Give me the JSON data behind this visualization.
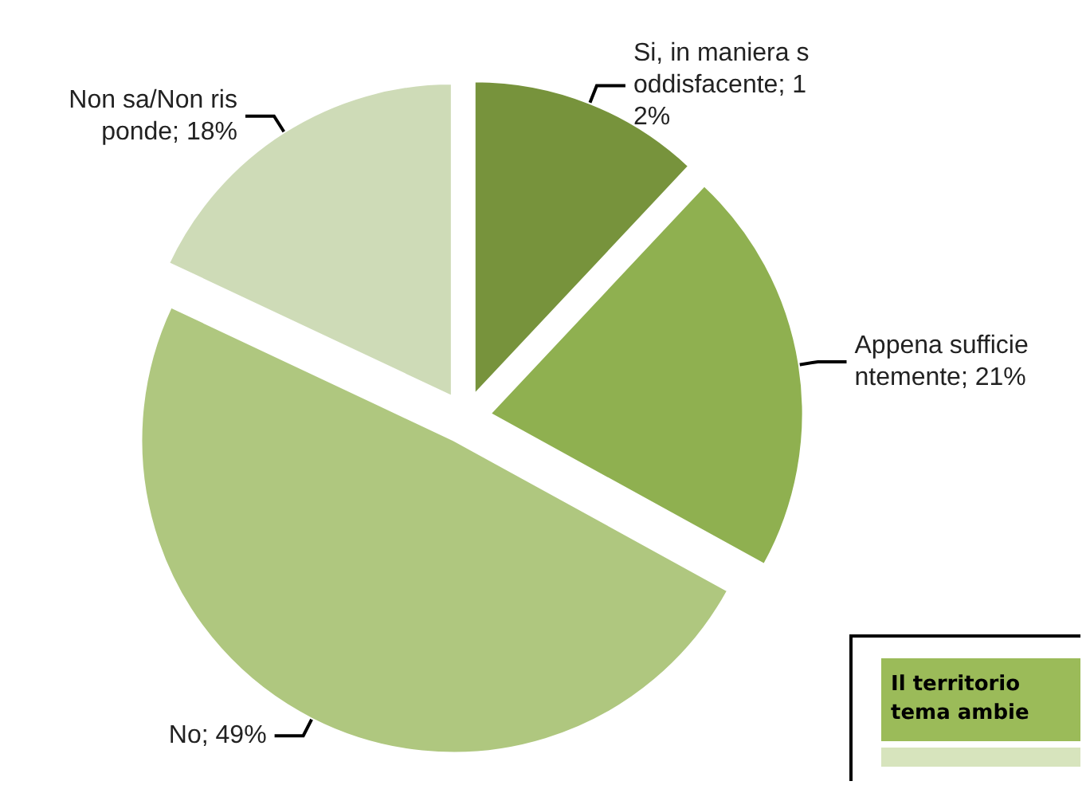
{
  "chart_data": {
    "type": "pie",
    "categories": [
      "Si, in maniera soddisfacente",
      "Appena sufficientemente",
      "No",
      "Non sa/Non risponde"
    ],
    "values": [
      12,
      21,
      49,
      18
    ],
    "value_labels": [
      "12%",
      "21%",
      "49%",
      "18%"
    ],
    "colors": [
      "#77933c",
      "#8fb050",
      "#afc77f",
      "#cedbb7"
    ],
    "annotations": [
      "Il territorio",
      "tema ambie"
    ],
    "legend": false
  }
}
